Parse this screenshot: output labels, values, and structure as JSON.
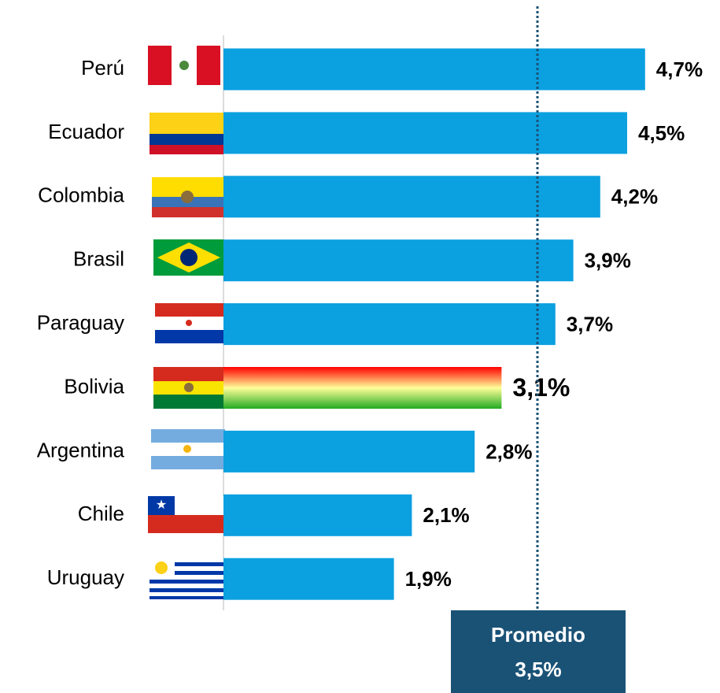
{
  "chart_data": {
    "type": "bar",
    "orientation": "horizontal",
    "categories": [
      "Perú",
      "Ecuador",
      "Colombia",
      "Brasil",
      "Paraguay",
      "Bolivia",
      "Argentina",
      "Chile",
      "Uruguay"
    ],
    "values": [
      4.7,
      4.5,
      4.2,
      3.9,
      3.7,
      3.1,
      2.8,
      2.1,
      1.9
    ],
    "value_labels": [
      "4,7%",
      "4,5%",
      "4,2%",
      "3,9%",
      "3,7%",
      "3,1%",
      "2,8%",
      "2,1%",
      "1,9%"
    ],
    "color": "#0ba0e0",
    "highlight": "Bolivia",
    "xlim": [
      0,
      5
    ],
    "average": {
      "label": "Promedio",
      "value": 3.5,
      "value_label": "3,5%",
      "color": "#1a5276"
    }
  }
}
